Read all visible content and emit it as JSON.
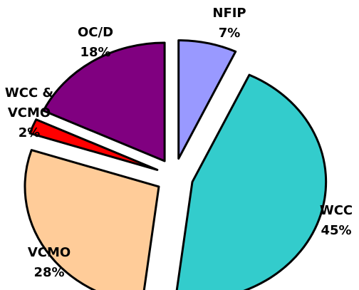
{
  "chart_data": {
    "type": "pie",
    "exploded": true,
    "slices": [
      {
        "label_lines": [
          "NFIP"
        ],
        "value_label": "7%",
        "value": 7,
        "color": "#9999ff"
      },
      {
        "label_lines": [
          "WCC"
        ],
        "value_label": "45%",
        "value": 45,
        "color": "#33cccc"
      },
      {
        "label_lines": [
          "VCMO"
        ],
        "value_label": "28%",
        "value": 28,
        "color": "#ffcc99"
      },
      {
        "label_lines": [
          "WCC &",
          "VCMO"
        ],
        "value_label": "2%",
        "value": 2,
        "color": "#ff0000"
      },
      {
        "label_lines": [
          "OC/D"
        ],
        "value_label": "18%",
        "value": 18,
        "color": "#800080"
      }
    ]
  }
}
